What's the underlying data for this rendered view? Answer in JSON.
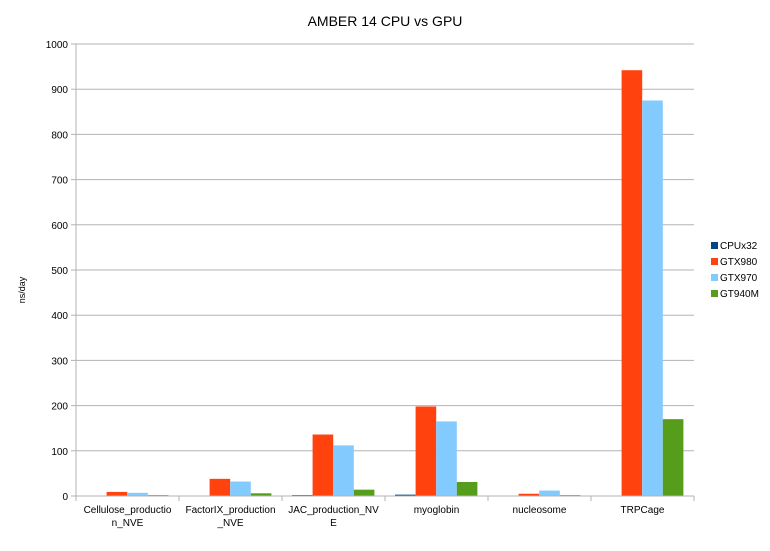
{
  "chart_data": {
    "type": "bar",
    "title": "AMBER 14 CPU vs GPU",
    "ylabel": "ns/day",
    "xlabel": "",
    "ylim": [
      0,
      1000
    ],
    "yticks": [
      0,
      100,
      200,
      300,
      400,
      500,
      600,
      700,
      800,
      900,
      1000
    ],
    "grid": true,
    "legend_position": "right",
    "categories": [
      [
        "Cellulose_productio",
        "n_NVE"
      ],
      [
        "FactorIX_production",
        "_NVE"
      ],
      [
        "JAC_production_NV",
        "E"
      ],
      [
        "myoglobin"
      ],
      [
        "nucleosome"
      ],
      [
        "TRPCage"
      ]
    ],
    "series": [
      {
        "name": "CPUx32",
        "color": "#004586",
        "values": [
          1,
          1,
          2,
          3,
          1,
          1
        ]
      },
      {
        "name": "GTX980",
        "color": "#ff420e",
        "values": [
          9,
          38,
          136,
          198,
          5,
          942
        ]
      },
      {
        "name": "GTX970",
        "color": "#83caff",
        "values": [
          7,
          32,
          112,
          165,
          12,
          875
        ]
      },
      {
        "name": "GT940M",
        "color": "#579d1c",
        "values": [
          2,
          6,
          14,
          31,
          2,
          170
        ]
      }
    ]
  }
}
